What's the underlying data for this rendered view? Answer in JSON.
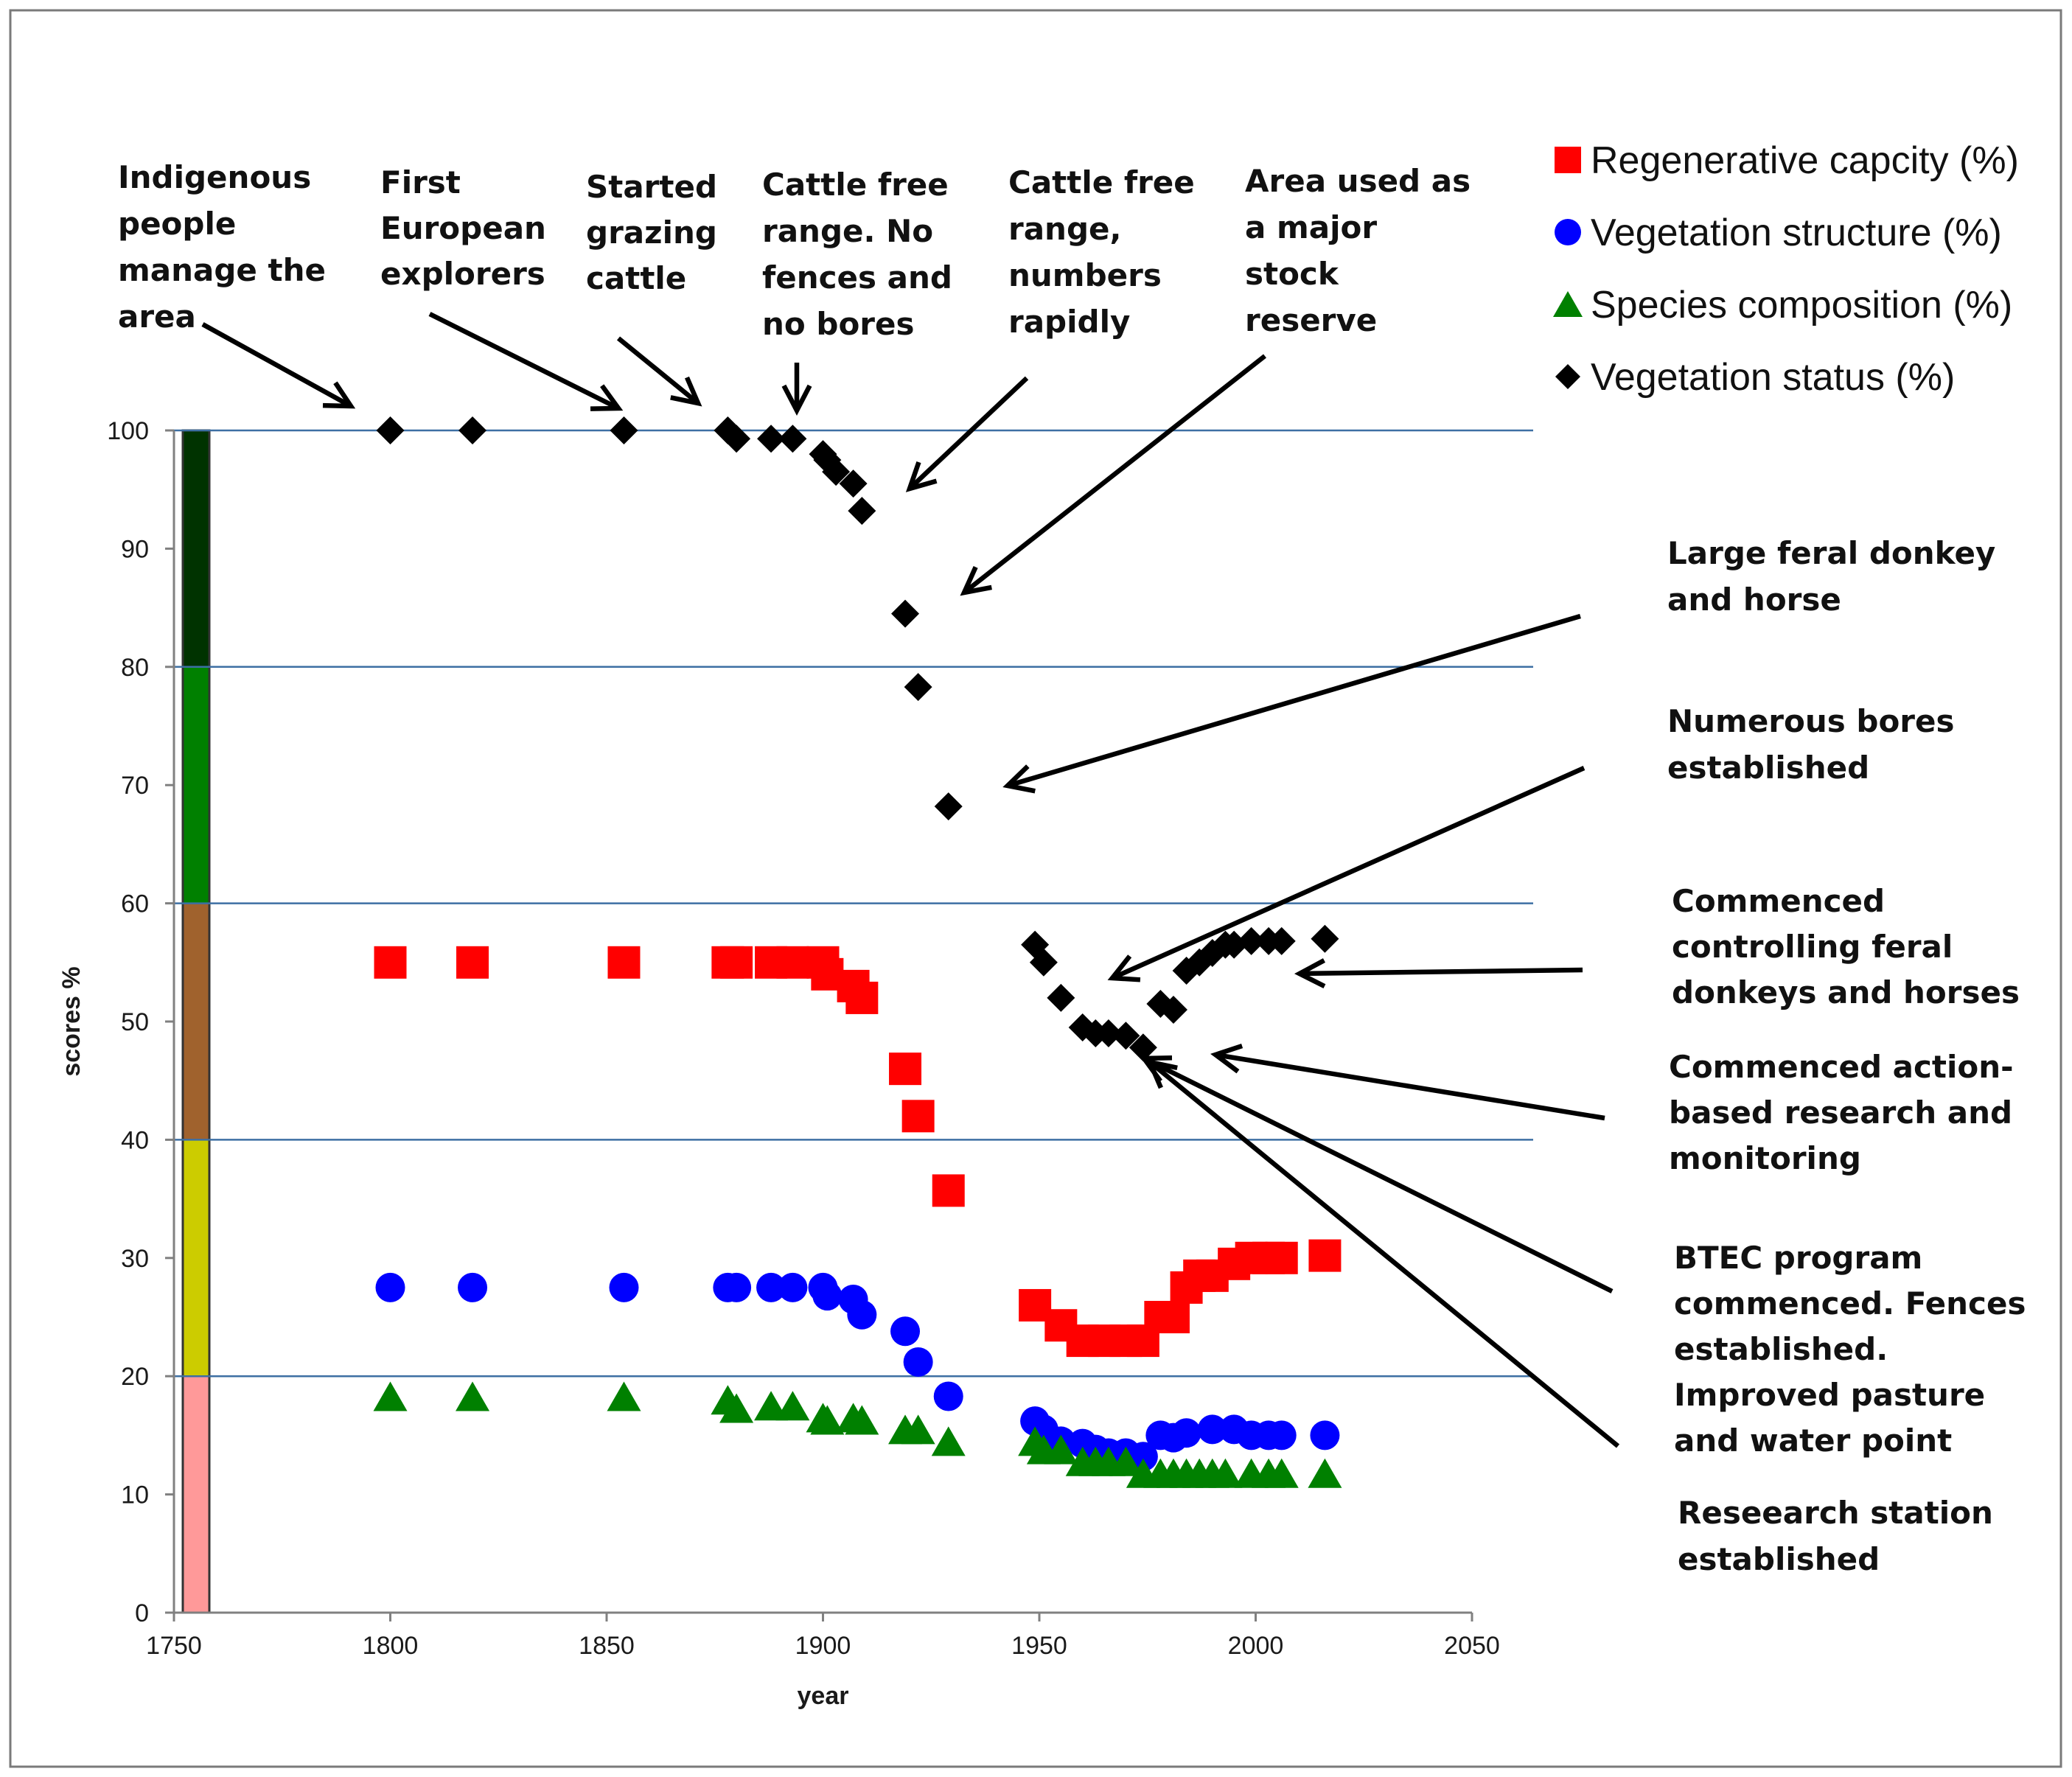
{
  "chart_data": {
    "type": "scatter",
    "xlabel": "year",
    "ylabel": "scores %",
    "xlim": [
      1750,
      2050
    ],
    "ylim": [
      0,
      100
    ],
    "xticks": [
      1750,
      1800,
      1850,
      1900,
      1950,
      2000,
      2050
    ],
    "yticks": [
      0,
      10,
      20,
      30,
      40,
      50,
      60,
      70,
      80,
      90,
      100
    ],
    "gridlines_y": [
      20,
      40,
      60,
      80,
      100
    ],
    "legend_position": "top-right",
    "condition_bands": [
      {
        "from": 80,
        "to": 100,
        "color": "#003300"
      },
      {
        "from": 60,
        "to": 80,
        "color": "#008000"
      },
      {
        "from": 40,
        "to": 60,
        "color": "#a0622d"
      },
      {
        "from": 20,
        "to": 40,
        "color": "#cccc00"
      },
      {
        "from": 0,
        "to": 20,
        "color": "#ff9999"
      }
    ],
    "series": [
      {
        "name": "Regenerative capcity (%)",
        "marker": "square",
        "color": "#ff0000",
        "points": [
          [
            1800,
            55
          ],
          [
            1819,
            55
          ],
          [
            1854,
            55
          ],
          [
            1878,
            55
          ],
          [
            1880,
            55
          ],
          [
            1888,
            55
          ],
          [
            1893,
            55
          ],
          [
            1900,
            55
          ],
          [
            1901,
            54
          ],
          [
            1907,
            53
          ],
          [
            1909,
            52
          ],
          [
            1919,
            46
          ],
          [
            1922,
            42
          ],
          [
            1929,
            35.7
          ],
          [
            1949,
            26
          ],
          [
            1955,
            24.3
          ],
          [
            1960,
            23
          ],
          [
            1965,
            23
          ],
          [
            1970,
            23
          ],
          [
            1974,
            23
          ],
          [
            1978,
            25
          ],
          [
            1981,
            25
          ],
          [
            1984,
            27.5
          ],
          [
            1987,
            28.5
          ],
          [
            1990,
            28.5
          ],
          [
            1995,
            29.5
          ],
          [
            1999,
            30
          ],
          [
            2003,
            30
          ],
          [
            2006,
            30
          ],
          [
            2016,
            30.2
          ]
        ]
      },
      {
        "name": "Vegetation structure (%)",
        "marker": "circle",
        "color": "#0000ff",
        "points": [
          [
            1800,
            27.5
          ],
          [
            1819,
            27.5
          ],
          [
            1854,
            27.5
          ],
          [
            1878,
            27.5
          ],
          [
            1880,
            27.5
          ],
          [
            1888,
            27.5
          ],
          [
            1893,
            27.5
          ],
          [
            1900,
            27.5
          ],
          [
            1901,
            26.8
          ],
          [
            1907,
            26.5
          ],
          [
            1909,
            25.2
          ],
          [
            1919,
            23.8
          ],
          [
            1922,
            21.2
          ],
          [
            1929,
            18.3
          ],
          [
            1949,
            16.2
          ],
          [
            1951,
            15.5
          ],
          [
            1955,
            14.5
          ],
          [
            1960,
            14.3
          ],
          [
            1963,
            13.8
          ],
          [
            1966,
            13.5
          ],
          [
            1970,
            13.5
          ],
          [
            1974,
            13.2
          ],
          [
            1978,
            15
          ],
          [
            1981,
            14.8
          ],
          [
            1984,
            15.2
          ],
          [
            1990,
            15.5
          ],
          [
            1995,
            15.5
          ],
          [
            1999,
            15
          ],
          [
            2003,
            15
          ],
          [
            2006,
            15
          ],
          [
            2016,
            15
          ]
        ]
      },
      {
        "name": "Species composition (%)",
        "marker": "triangle",
        "color": "#008000",
        "points": [
          [
            1800,
            18.3
          ],
          [
            1819,
            18.3
          ],
          [
            1854,
            18.3
          ],
          [
            1878,
            18
          ],
          [
            1880,
            17.3
          ],
          [
            1888,
            17.5
          ],
          [
            1893,
            17.5
          ],
          [
            1900,
            16.5
          ],
          [
            1901,
            16.3
          ],
          [
            1907,
            16.5
          ],
          [
            1909,
            16.3
          ],
          [
            1919,
            15.5
          ],
          [
            1922,
            15.5
          ],
          [
            1929,
            14.5
          ],
          [
            1949,
            14.5
          ],
          [
            1951,
            13.8
          ],
          [
            1955,
            13.8
          ],
          [
            1960,
            12.8
          ],
          [
            1963,
            12.8
          ],
          [
            1966,
            12.8
          ],
          [
            1970,
            12.8
          ],
          [
            1974,
            11.8
          ],
          [
            1978,
            11.8
          ],
          [
            1981,
            11.8
          ],
          [
            1984,
            11.8
          ],
          [
            1987,
            11.8
          ],
          [
            1990,
            11.8
          ],
          [
            1993,
            11.8
          ],
          [
            1999,
            11.8
          ],
          [
            2003,
            11.8
          ],
          [
            2006,
            11.8
          ],
          [
            2016,
            11.8
          ]
        ]
      },
      {
        "name": "Vegetation status (%)",
        "marker": "diamond",
        "color": "#000000",
        "points": [
          [
            1800,
            100
          ],
          [
            1819,
            100
          ],
          [
            1854,
            100
          ],
          [
            1878,
            100
          ],
          [
            1880,
            99.3
          ],
          [
            1888,
            99.3
          ],
          [
            1893,
            99.3
          ],
          [
            1900,
            98
          ],
          [
            1901,
            97.5
          ],
          [
            1903,
            96.5
          ],
          [
            1907,
            95.5
          ],
          [
            1909,
            93.2
          ],
          [
            1919,
            84.5
          ],
          [
            1922,
            78.3
          ],
          [
            1929,
            68.2
          ],
          [
            1949,
            56.5
          ],
          [
            1951,
            55
          ],
          [
            1955,
            52
          ],
          [
            1960,
            49.5
          ],
          [
            1963,
            49
          ],
          [
            1966,
            49
          ],
          [
            1970,
            48.8
          ],
          [
            1974,
            47.8
          ],
          [
            1978,
            51.5
          ],
          [
            1981,
            51
          ],
          [
            1984,
            54.3
          ],
          [
            1987,
            55
          ],
          [
            1990,
            55.8
          ],
          [
            1993,
            56.5
          ],
          [
            1995,
            56.5
          ],
          [
            1999,
            56.8
          ],
          [
            2003,
            56.8
          ],
          [
            2006,
            56.8
          ],
          [
            2016,
            57
          ]
        ]
      }
    ],
    "annotations": [
      {
        "lines": [
          "Indigenous",
          "people",
          "manage the",
          "area"
        ]
      },
      {
        "lines": [
          "First",
          "European",
          "explorers"
        ]
      },
      {
        "lines": [
          "Started",
          "grazing",
          "cattle"
        ]
      },
      {
        "lines": [
          "Cattle free",
          "range. No",
          "fences and",
          "no bores"
        ]
      },
      {
        "lines": [
          "Cattle free",
          "range,",
          "numbers",
          "rapidly"
        ]
      },
      {
        "lines": [
          "Area used as",
          "a major",
          "stock",
          "reserve"
        ]
      },
      {
        "lines": [
          "Large feral donkey",
          "and horse"
        ]
      },
      {
        "lines": [
          "Numerous bores",
          "established"
        ]
      },
      {
        "lines": [
          "Commenced",
          "controlling feral",
          "donkeys and horses"
        ]
      },
      {
        "lines": [
          "Commenced action-",
          "based research and",
          "monitoring"
        ]
      },
      {
        "lines": [
          "BTEC program",
          "commenced. Fences",
          "established.",
          "Improved pasture",
          "and water point"
        ]
      },
      {
        "lines": [
          "Reseearch station",
          "established"
        ]
      }
    ]
  }
}
